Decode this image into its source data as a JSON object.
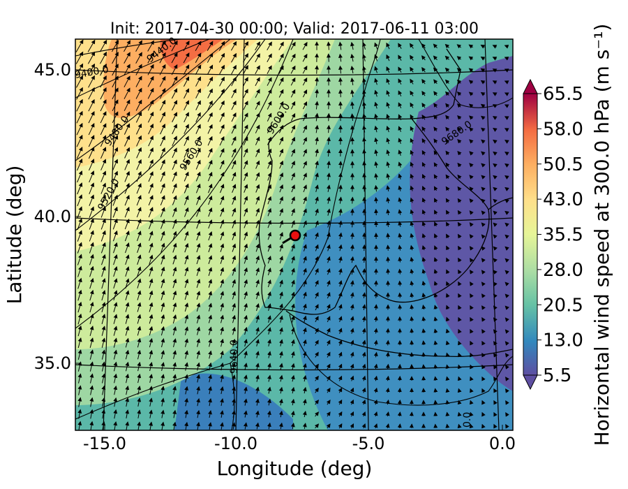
{
  "title": "Init: 2017-04-30 00:00; Valid: 2017-06-11 03:00",
  "xaxis": {
    "label": "Longitude (deg)",
    "ticks": [
      "-15.0",
      "-10.0",
      "-5.0",
      "0.0"
    ]
  },
  "yaxis": {
    "label": "Latitude (deg)",
    "ticks": [
      "45.0",
      "40.0",
      "35.0"
    ]
  },
  "colorbar": {
    "label": "Horizontal wind speed at 300.0 hPa (m s⁻¹)",
    "ticks": [
      "65.5",
      "58.0",
      "50.5",
      "43.0",
      "35.5",
      "28.0",
      "20.5",
      "13.0",
      "5.5"
    ],
    "colors": [
      "#5e4fa2",
      "#3288bd",
      "#66c2a5",
      "#abdda4",
      "#e6f598",
      "#fee08b",
      "#fdae61",
      "#f46d43",
      "#d53e4f",
      "#9e0142"
    ]
  },
  "contour_labels": [
    "9440.0",
    "9400.0",
    "9480.0",
    "9520.0",
    "9560.0",
    "9600.0",
    "9680.0",
    "9640.0",
    "0.0"
  ],
  "marker": {
    "color": "#e81010"
  }
}
